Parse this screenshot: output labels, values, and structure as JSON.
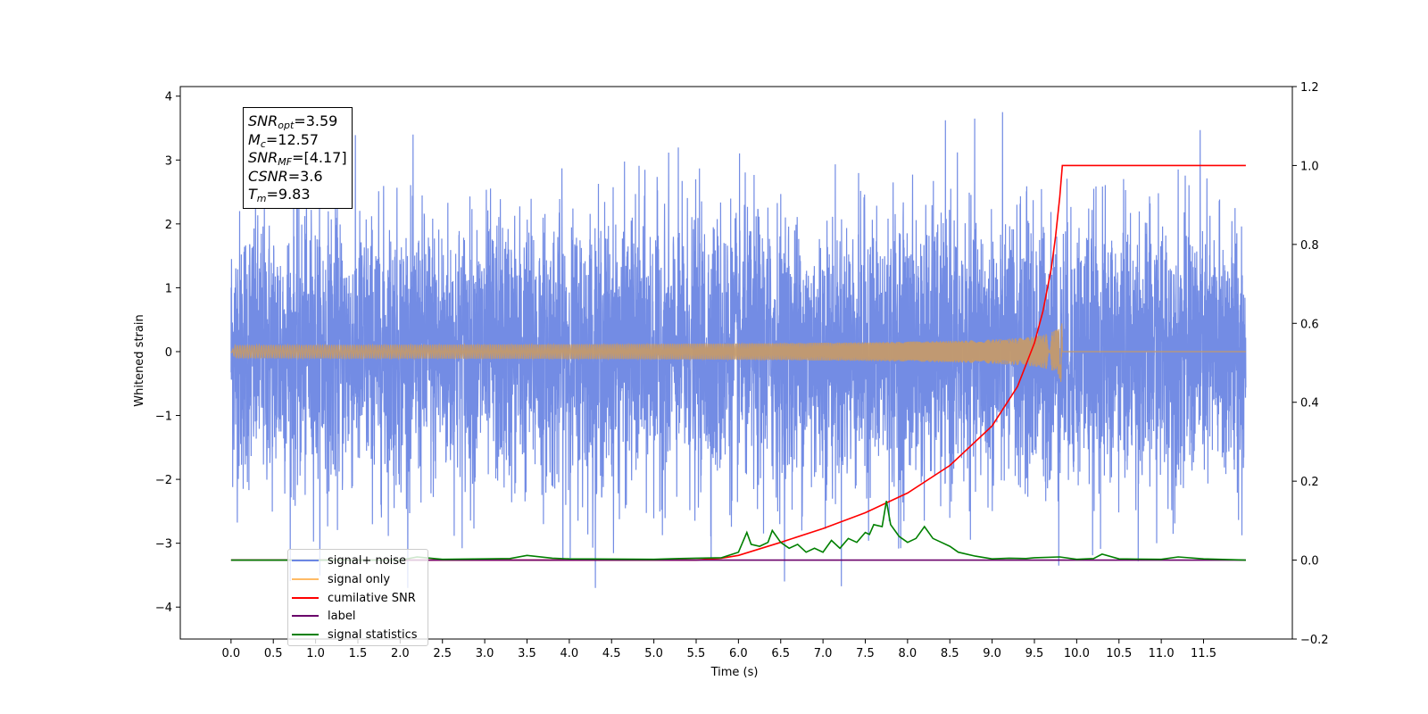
{
  "chart_data": {
    "type": "line",
    "xlabel": "Time (s)",
    "ylabel": "Whitened strain",
    "xlim": [
      -0.6,
      12.55
    ],
    "ylim": [
      -4.5,
      4.15
    ],
    "y2lim": [
      -0.2,
      1.2
    ],
    "x_ticks": [
      "0.0",
      "0.5",
      "1.0",
      "1.5",
      "2.0",
      "2.5",
      "3.0",
      "3.5",
      "4.0",
      "4.5",
      "5.0",
      "5.5",
      "6.0",
      "6.5",
      "7.0",
      "7.5",
      "8.0",
      "8.5",
      "9.0",
      "9.5",
      "10.0",
      "10.5",
      "11.0",
      "11.5"
    ],
    "y_ticks": [
      "4",
      "3",
      "2",
      "1",
      "0",
      "−1",
      "−2",
      "−3",
      "−4"
    ],
    "y2_ticks": [
      "1.2",
      "1.0",
      "0.8",
      "0.6",
      "0.4",
      "0.2",
      "0.0",
      "−0.2"
    ],
    "legend_position": "lower left",
    "series": [
      {
        "name": "signal+ noise",
        "color": "#6b86e3",
        "axis": "left",
        "description_of_values": "noise",
        "x_range": [
          0.0,
          12.0
        ],
        "amplitude_range": [
          -3.7,
          3.75
        ]
      },
      {
        "name": "signal only",
        "color": "#ffbb66",
        "axis": "left",
        "x_range": [
          0.0,
          12.0
        ],
        "merger_time": 9.83,
        "peak_amplitude": 0.72
      },
      {
        "name": "cumilative SNR",
        "color": "#ff0000",
        "axis": "right",
        "x": [
          0.0,
          5.5,
          5.8,
          6.0,
          6.5,
          7.0,
          7.5,
          8.0,
          8.5,
          9.0,
          9.3,
          9.5,
          9.6,
          9.7,
          9.75,
          9.8,
          9.83,
          10.0,
          11.0,
          12.0
        ],
        "y": [
          0.0,
          0.0,
          0.005,
          0.012,
          0.045,
          0.08,
          0.12,
          0.17,
          0.24,
          0.34,
          0.44,
          0.55,
          0.63,
          0.74,
          0.82,
          0.92,
          1.0,
          1.0,
          1.0,
          1.0
        ]
      },
      {
        "name": "label",
        "color": "#6a006a",
        "axis": "right",
        "x": [
          0.0,
          12.0
        ],
        "y": [
          0.0,
          0.0
        ]
      },
      {
        "name": "signal statistics",
        "color": "#008000",
        "axis": "right",
        "x": [
          0.0,
          2.0,
          2.2,
          2.5,
          3.0,
          3.3,
          3.5,
          3.8,
          4.0,
          5.0,
          5.3,
          5.5,
          5.8,
          6.0,
          6.1,
          6.15,
          6.25,
          6.35,
          6.4,
          6.5,
          6.6,
          6.7,
          6.8,
          6.9,
          7.0,
          7.1,
          7.2,
          7.3,
          7.4,
          7.5,
          7.55,
          7.6,
          7.7,
          7.75,
          7.8,
          7.9,
          8.0,
          8.1,
          8.2,
          8.3,
          8.4,
          8.5,
          8.6,
          8.8,
          9.0,
          9.2,
          9.4,
          9.5,
          9.8,
          10.0,
          10.2,
          10.3,
          10.5,
          11.0,
          11.2,
          11.5,
          12.0
        ],
        "y": [
          0.0,
          0.0,
          0.008,
          0.002,
          0.003,
          0.004,
          0.012,
          0.005,
          0.003,
          0.002,
          0.004,
          0.005,
          0.006,
          0.02,
          0.07,
          0.04,
          0.035,
          0.045,
          0.075,
          0.045,
          0.03,
          0.04,
          0.02,
          0.03,
          0.02,
          0.05,
          0.03,
          0.055,
          0.045,
          0.07,
          0.065,
          0.09,
          0.085,
          0.15,
          0.09,
          0.06,
          0.045,
          0.055,
          0.085,
          0.055,
          0.045,
          0.035,
          0.02,
          0.01,
          0.003,
          0.005,
          0.004,
          0.006,
          0.008,
          0.002,
          0.004,
          0.015,
          0.003,
          0.002,
          0.008,
          0.003,
          0.0
        ]
      }
    ],
    "annotation": {
      "snr_opt_value": "3.59",
      "mc_value": "12.57",
      "snr_mf_value": "[4.17]",
      "csnr_value": "3.6",
      "tm_value": "9.83"
    }
  },
  "annotation_text": {
    "snr_opt_base": "SNR",
    "snr_opt_sub": "opt",
    "snr_opt_rest": "=3.59",
    "mc_base": "M",
    "mc_sub": "c",
    "mc_rest": "=12.57",
    "snr_mf_base": "SNR",
    "snr_mf_sub": "MF",
    "snr_mf_rest": "=[4.17]",
    "csnr_base": "CSNR",
    "csnr_rest": "=3.6",
    "tm_base": "T",
    "tm_sub": "m",
    "tm_rest": "=9.83"
  },
  "legend": [
    "signal+ noise",
    "signal only",
    "cumilative SNR",
    "label",
    "signal statistics"
  ]
}
